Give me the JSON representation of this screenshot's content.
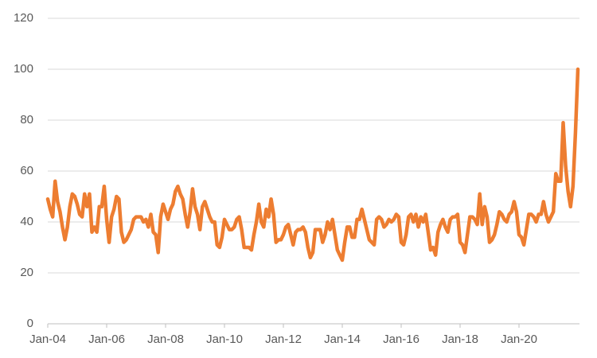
{
  "chart_data": {
    "type": "line",
    "categories": [
      "Jan-04",
      null,
      null,
      null,
      null,
      null,
      null,
      null,
      null,
      null,
      null,
      null,
      null,
      null,
      null,
      null,
      null,
      null,
      null,
      null,
      null,
      null,
      null,
      null,
      "Jan-06",
      null,
      null,
      null,
      null,
      null,
      null,
      null,
      null,
      null,
      null,
      null,
      null,
      null,
      null,
      null,
      null,
      null,
      null,
      null,
      null,
      null,
      null,
      null,
      "Jan-08",
      null,
      null,
      null,
      null,
      null,
      null,
      null,
      null,
      null,
      null,
      null,
      null,
      null,
      null,
      null,
      null,
      null,
      null,
      null,
      null,
      null,
      null,
      null,
      "Jan-10",
      null,
      null,
      null,
      null,
      null,
      null,
      null,
      null,
      null,
      null,
      null,
      null,
      null,
      null,
      null,
      null,
      null,
      null,
      null,
      null,
      null,
      null,
      null,
      "Jan-12",
      null,
      null,
      null,
      null,
      null,
      null,
      null,
      null,
      null,
      null,
      null,
      null,
      null,
      null,
      null,
      null,
      null,
      null,
      null,
      null,
      null,
      null,
      null,
      "Jan-14",
      null,
      null,
      null,
      null,
      null,
      null,
      null,
      null,
      null,
      null,
      null,
      null,
      null,
      null,
      null,
      null,
      null,
      null,
      null,
      null,
      null,
      null,
      null,
      "Jan-16",
      null,
      null,
      null,
      null,
      null,
      null,
      null,
      null,
      null,
      null,
      null,
      null,
      null,
      null,
      null,
      null,
      null,
      null,
      null,
      null,
      null,
      null,
      null,
      "Jan-18",
      null,
      null,
      null,
      null,
      null,
      null,
      null,
      null,
      null,
      null,
      null,
      null,
      null,
      null,
      null,
      null,
      null,
      null,
      null,
      null,
      null,
      null,
      null,
      "Jan-20",
      null,
      null,
      null,
      null,
      null,
      null,
      null,
      null,
      null,
      null,
      null,
      null,
      null,
      null,
      null,
      null,
      null,
      null,
      null,
      null,
      null,
      null,
      null,
      null
    ],
    "series": [
      {
        "name": null,
        "color": "#ed7d31",
        "values": [
          49,
          45,
          42,
          56,
          48,
          44,
          38,
          33,
          38,
          46,
          51,
          50,
          47,
          43,
          42,
          51,
          46,
          51,
          36,
          38,
          36,
          46,
          46,
          54,
          41,
          32,
          42,
          45,
          50,
          49,
          36,
          32,
          33,
          35,
          37,
          41,
          42,
          42,
          42,
          40,
          41,
          38,
          43,
          36,
          35,
          28,
          42,
          47,
          44,
          41,
          45,
          47,
          52,
          54,
          51,
          49,
          43,
          38,
          44,
          53,
          46,
          43,
          37,
          46,
          48,
          45,
          42,
          40,
          40,
          31,
          30,
          34,
          41,
          39,
          37,
          37,
          38,
          41,
          42,
          37,
          30,
          30,
          30,
          29,
          35,
          40,
          47,
          40,
          38,
          45,
          42,
          49,
          43,
          32,
          33,
          33,
          35,
          38,
          39,
          35,
          31,
          36,
          37,
          37,
          38,
          36,
          30,
          26,
          28,
          37,
          37,
          37,
          32,
          35,
          40,
          37,
          41,
          35,
          29,
          27,
          25,
          32,
          38,
          38,
          34,
          34,
          41,
          41,
          45,
          41,
          37,
          33,
          32,
          31,
          41,
          42,
          41,
          38,
          39,
          41,
          40,
          41,
          43,
          42,
          32,
          31,
          35,
          42,
          43,
          40,
          43,
          38,
          42,
          40,
          43,
          36,
          29,
          30,
          27,
          36,
          39,
          41,
          38,
          36,
          41,
          42,
          42,
          43,
          32,
          31,
          28,
          35,
          42,
          42,
          41,
          39,
          51,
          39,
          46,
          42,
          32,
          33,
          35,
          39,
          44,
          43,
          41,
          40,
          43,
          44,
          48,
          44,
          35,
          34,
          31,
          37,
          43,
          43,
          42,
          40,
          43,
          43,
          48,
          43,
          40,
          42,
          44,
          59,
          56,
          56,
          79,
          62,
          52,
          46,
          54,
          75,
          100
        ]
      }
    ],
    "ylim": [
      0,
      120
    ],
    "yticks": [
      0,
      20,
      40,
      60,
      80,
      100,
      120
    ],
    "grid": true
  }
}
